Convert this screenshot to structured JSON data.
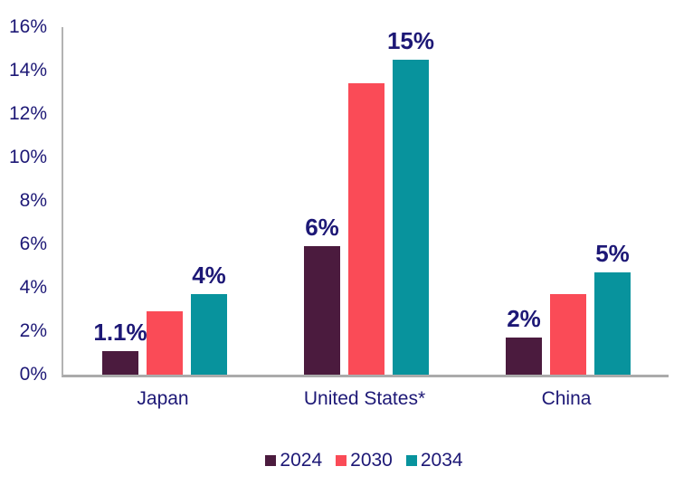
{
  "chart_data": {
    "type": "bar",
    "title": "",
    "categories": [
      "Japan",
      "United States*",
      "China"
    ],
    "series": [
      {
        "name": "2024",
        "color": "#4B1B3E",
        "values": [
          1.1,
          5.9,
          1.7
        ],
        "data_labels": [
          "1.1%",
          "6%",
          "2%"
        ]
      },
      {
        "name": "2030",
        "color": "#FA4B57",
        "values": [
          2.9,
          13.4,
          3.7
        ],
        "data_labels": [
          "",
          "",
          ""
        ]
      },
      {
        "name": "2034",
        "color": "#08939D",
        "values": [
          3.7,
          14.5,
          4.7
        ],
        "data_labels": [
          "4%",
          "15%",
          "5%"
        ]
      }
    ],
    "y_axis": {
      "min": 0,
      "max": 16,
      "step": 2,
      "unit": "%",
      "tick_labels": [
        "16%",
        "14%",
        "12%",
        "10%",
        "8%",
        "6%",
        "4%",
        "2%",
        "0%"
      ]
    },
    "grid": false,
    "legend": {
      "position": "bottom",
      "entries": [
        "2024",
        "2030",
        "2034"
      ]
    },
    "colors": {
      "text_navy": "#1D1876",
      "axis_gray": "#B3B3B3",
      "background": "#FFFFFF"
    }
  }
}
